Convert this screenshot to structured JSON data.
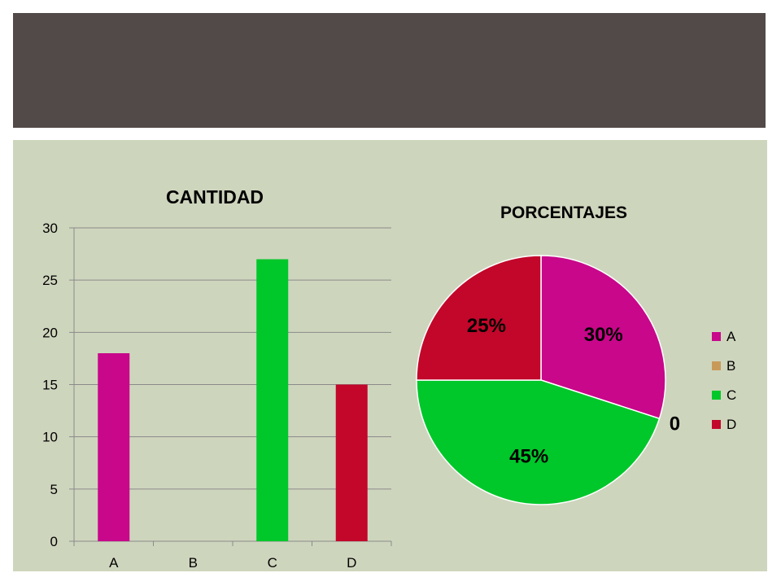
{
  "colors": {
    "title_band": "#524a48",
    "panel": "#ced5bd",
    "bar_chart_bg": "#ced5bd",
    "gridline": "#8a8a8a",
    "text": "#000000"
  },
  "chart_data": [
    {
      "type": "bar",
      "title": "CANTIDAD",
      "categories": [
        "A",
        "B",
        "C",
        "D"
      ],
      "values": [
        18,
        0,
        27,
        15
      ],
      "colors": [
        "#c8078a",
        "#c89a5a",
        "#00c72a",
        "#c2072a"
      ],
      "ylim": [
        0,
        30
      ],
      "yticks": [
        "0",
        "5",
        "10",
        "15",
        "20",
        "25",
        "30"
      ],
      "grid": true,
      "legend": "none"
    },
    {
      "type": "pie",
      "title": "PORCENTAJES",
      "categories": [
        "A",
        "B",
        "C",
        "D"
      ],
      "values": [
        30,
        0,
        45,
        25
      ],
      "data_labels": [
        "30%",
        "0",
        "45%",
        "25%"
      ],
      "colors": [
        "#c8078a",
        "#c89a5a",
        "#00c72a",
        "#c2072a"
      ],
      "legend": "right"
    }
  ]
}
